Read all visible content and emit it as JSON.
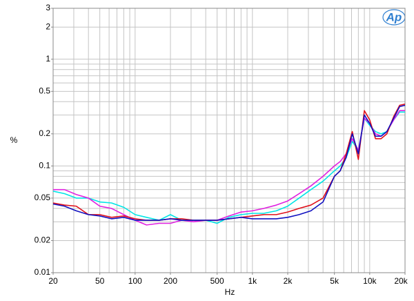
{
  "chart_data": {
    "type": "line",
    "xlabel": "Hz",
    "ylabel": "%",
    "logo": "Ap",
    "xscale": "log",
    "yscale": "log",
    "grid": true,
    "xlim": [
      20,
      20000
    ],
    "ylim": [
      0.01,
      3
    ],
    "xticks": [
      20,
      50,
      100,
      200,
      500,
      {
        "value": 1000,
        "label": "1k"
      },
      {
        "value": 2000,
        "label": "2k"
      },
      {
        "value": 5000,
        "label": "5k"
      },
      {
        "value": 10000,
        "label": "10k"
      },
      {
        "value": 20000,
        "label": "20k"
      }
    ],
    "yticks": [
      0.01,
      0.02,
      0.05,
      0.1,
      0.2,
      0.5,
      1,
      2,
      3
    ],
    "xgrid": [
      20,
      30,
      40,
      50,
      60,
      70,
      80,
      90,
      100,
      200,
      300,
      400,
      500,
      600,
      700,
      800,
      900,
      1000,
      2000,
      3000,
      4000,
      5000,
      6000,
      7000,
      8000,
      9000,
      10000,
      20000
    ],
    "ygrid": [
      0.01,
      0.02,
      0.03,
      0.04,
      0.05,
      0.06,
      0.07,
      0.08,
      0.09,
      0.1,
      0.2,
      0.3,
      0.4,
      0.5,
      0.6,
      0.7,
      0.8,
      0.9,
      1,
      2,
      3
    ],
    "x": [
      20,
      25,
      31.5,
      40,
      50,
      63,
      80,
      100,
      125,
      160,
      200,
      250,
      315,
      400,
      500,
      630,
      800,
      1000,
      1250,
      1600,
      2000,
      2500,
      3150,
      4000,
      5000,
      5600,
      6300,
      7100,
      8000,
      9000,
      10000,
      11200,
      12500,
      14000,
      16000,
      18000,
      20000
    ],
    "series": [
      {
        "color": "#00e5e5",
        "values": [
          0.058,
          0.055,
          0.05,
          0.05,
          0.046,
          0.045,
          0.041,
          0.035,
          0.033,
          0.031,
          0.035,
          0.031,
          0.031,
          0.031,
          0.029,
          0.033,
          0.035,
          0.036,
          0.036,
          0.038,
          0.042,
          0.05,
          0.06,
          0.072,
          0.09,
          0.1,
          0.12,
          0.17,
          0.14,
          0.28,
          0.24,
          0.21,
          0.2,
          0.21,
          0.27,
          0.32,
          0.32
        ]
      },
      {
        "color": "#e020e0",
        "values": [
          0.06,
          0.06,
          0.054,
          0.05,
          0.042,
          0.04,
          0.035,
          0.031,
          0.028,
          0.029,
          0.029,
          0.031,
          0.03,
          0.031,
          0.031,
          0.034,
          0.037,
          0.038,
          0.04,
          0.043,
          0.047,
          0.055,
          0.065,
          0.08,
          0.1,
          0.11,
          0.13,
          0.18,
          0.14,
          0.28,
          0.25,
          0.2,
          0.19,
          0.21,
          0.27,
          0.33,
          0.33
        ]
      },
      {
        "color": "#e0101a",
        "values": [
          0.045,
          0.043,
          0.042,
          0.035,
          0.035,
          0.033,
          0.034,
          0.032,
          0.031,
          0.031,
          0.032,
          0.032,
          0.031,
          0.031,
          0.031,
          0.032,
          0.033,
          0.034,
          0.035,
          0.035,
          0.037,
          0.04,
          0.043,
          0.05,
          0.08,
          0.09,
          0.13,
          0.21,
          0.115,
          0.33,
          0.27,
          0.18,
          0.18,
          0.2,
          0.29,
          0.37,
          0.38
        ]
      },
      {
        "color": "#1010c0",
        "values": [
          0.044,
          0.042,
          0.038,
          0.035,
          0.034,
          0.032,
          0.033,
          0.031,
          0.031,
          0.031,
          0.032,
          0.031,
          0.031,
          0.031,
          0.031,
          0.032,
          0.033,
          0.032,
          0.032,
          0.032,
          0.033,
          0.035,
          0.038,
          0.046,
          0.08,
          0.09,
          0.12,
          0.2,
          0.13,
          0.3,
          0.25,
          0.19,
          0.19,
          0.21,
          0.28,
          0.36,
          0.37
        ]
      }
    ]
  }
}
